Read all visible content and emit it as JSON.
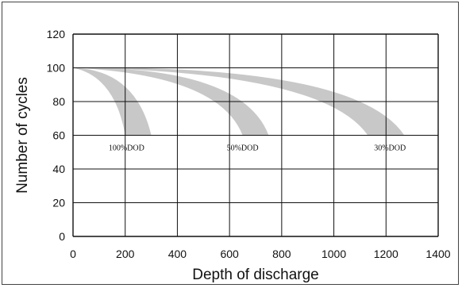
{
  "chart_data": {
    "type": "area",
    "title": "",
    "xlabel": "Depth of discharge",
    "ylabel": "Number of cycles",
    "xlim": [
      0,
      1400
    ],
    "ylim": [
      0,
      120
    ],
    "x_ticks": [
      0,
      200,
      400,
      600,
      800,
      1000,
      1200,
      1400
    ],
    "y_ticks": [
      0,
      20,
      40,
      60,
      80,
      100,
      120
    ],
    "grid": true,
    "band_color": "#c8c8c8",
    "series": [
      {
        "name": "100%DOD",
        "label": "100%DOD",
        "start": [
          0,
          100
        ],
        "inner_end": [
          200,
          60
        ],
        "outer_end": [
          300,
          60
        ],
        "inner_control": [
          160,
          95
        ],
        "outer_control": [
          240,
          99
        ],
        "label_at": [
          205,
          53
        ]
      },
      {
        "name": "50%DOD",
        "label": "50%DOD",
        "start": [
          0,
          100
        ],
        "inner_end": [
          650,
          60
        ],
        "outer_end": [
          750,
          60
        ],
        "inner_control": [
          560,
          96
        ],
        "outer_control": [
          650,
          101
        ],
        "label_at": [
          650,
          53
        ]
      },
      {
        "name": "30%DOD",
        "label": "30%DOD",
        "start": [
          0,
          100
        ],
        "inner_end": [
          1130,
          60
        ],
        "outer_end": [
          1270,
          60
        ],
        "inner_control": [
          960,
          98
        ],
        "outer_control": [
          1090,
          102
        ],
        "label_at": [
          1215,
          53
        ]
      }
    ]
  }
}
